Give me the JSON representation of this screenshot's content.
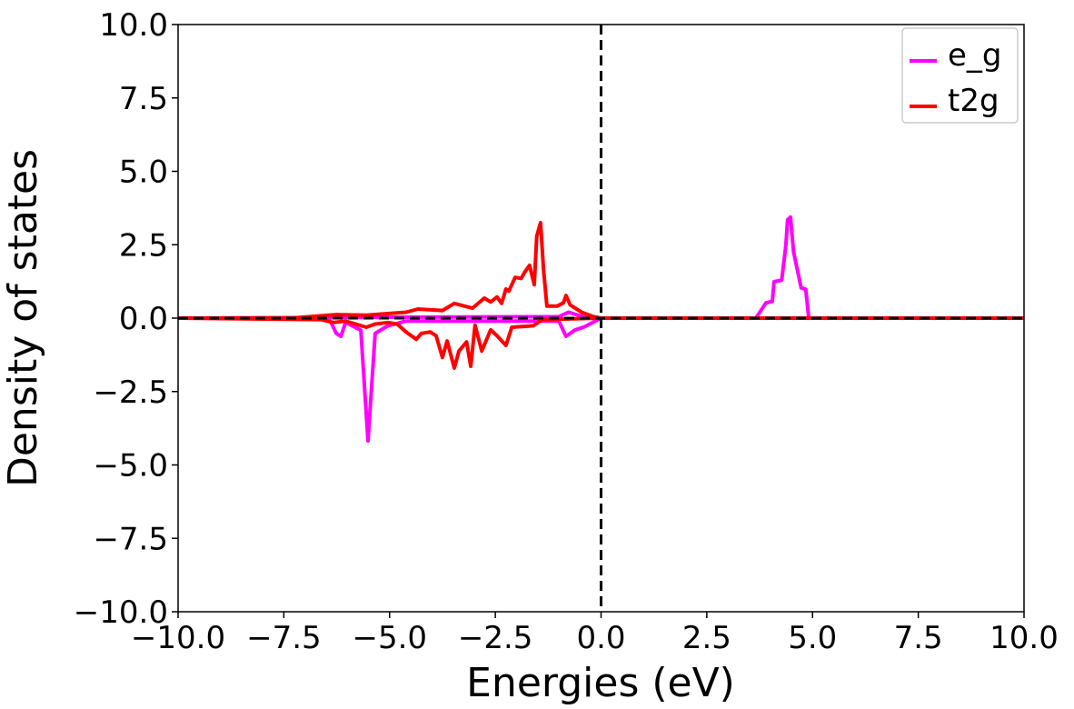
{
  "chart_data": {
    "type": "line",
    "title": "",
    "xlabel": "Energies (eV)",
    "ylabel": "Density of states",
    "xlim": [
      -10,
      10
    ],
    "ylim": [
      -10,
      10
    ],
    "xticks": [
      "−10.0",
      "−7.5",
      "−5.0",
      "−2.5",
      "0.0",
      "2.5",
      "5.0",
      "7.5",
      "10.0"
    ],
    "yticks": [
      "10.0",
      "7.5",
      "5.0",
      "2.5",
      "0.0",
      "−2.5",
      "−5.0",
      "−7.5",
      "−10.0"
    ],
    "xtick_values": [
      -10,
      -7.5,
      -5,
      -2.5,
      0,
      2.5,
      5,
      7.5,
      10
    ],
    "ytick_values": [
      10,
      7.5,
      5,
      2.5,
      0,
      -2.5,
      -5,
      -7.5,
      -10
    ],
    "grid": false,
    "legend_placement": "top-right",
    "reference_lines": {
      "x": 0,
      "y": 0,
      "style": "dashed",
      "color": "#000000"
    },
    "series": [
      {
        "name": "e_g",
        "color": "#ff00ff",
        "part": "spin-up",
        "x": [
          -10,
          -5,
          -1.0,
          -0.77,
          -0.5,
          0,
          3.66,
          3.9,
          4.05,
          4.09,
          4.27,
          4.37,
          4.41,
          4.48,
          4.55,
          4.73,
          4.84,
          4.91,
          5.0,
          10
        ],
        "y": [
          0,
          0.03,
          0.05,
          0.2,
          0.08,
          0,
          0,
          0.52,
          0.57,
          1.24,
          1.29,
          2.48,
          3.35,
          3.44,
          2.27,
          1.03,
          0.98,
          0,
          0,
          0
        ]
      },
      {
        "name": "e_g",
        "color": "#ff00ff",
        "part": "spin-down",
        "x": [
          -10,
          -6.6,
          -6.4,
          -6.26,
          -6.15,
          -6.04,
          -5.68,
          -5.51,
          -5.34,
          -5.04,
          -4.61,
          -1.0,
          -0.83,
          -0.62,
          -0.4,
          0,
          10
        ],
        "y": [
          0,
          0,
          -0.1,
          -0.52,
          -0.62,
          -0.15,
          -0.41,
          -4.18,
          -0.52,
          -0.26,
          -0.1,
          -0.1,
          -0.62,
          -0.41,
          -0.3,
          0,
          0
        ]
      },
      {
        "name": "t2g",
        "color": "#ff0000",
        "part": "spin-up",
        "x": [
          -10,
          -7.34,
          -6.26,
          -5.55,
          -4.61,
          -4.33,
          -3.75,
          -3.47,
          -3.04,
          -2.76,
          -2.61,
          -2.46,
          -2.35,
          -2.25,
          -2.18,
          -2.03,
          -1.89,
          -1.79,
          -1.69,
          -1.58,
          -1.52,
          -1.43,
          -1.36,
          -1.28,
          -1.04,
          -0.89,
          -0.83,
          -0.73,
          -0.46,
          -0.18,
          0,
          10
        ],
        "y": [
          0,
          0,
          0.12,
          0.1,
          0.2,
          0.31,
          0.26,
          0.5,
          0.34,
          0.68,
          0.55,
          0.72,
          0.5,
          0.99,
          0.92,
          1.39,
          1.35,
          1.6,
          1.8,
          1.14,
          2.79,
          3.25,
          1.65,
          0.41,
          0.41,
          0.52,
          0.77,
          0.45,
          0.2,
          0.05,
          0,
          0
        ]
      },
      {
        "name": "t2g",
        "color": "#ff0000",
        "part": "spin-down",
        "x": [
          -10,
          -6.63,
          -6.33,
          -6.04,
          -5.55,
          -5.34,
          -5.04,
          -4.82,
          -4.61,
          -4.37,
          -4.25,
          -4.04,
          -3.9,
          -3.75,
          -3.64,
          -3.47,
          -3.36,
          -3.18,
          -3.08,
          -2.98,
          -2.82,
          -2.61,
          -2.46,
          -2.25,
          -2.11,
          -1.6,
          -1.39,
          0,
          10
        ],
        "y": [
          0,
          -0.05,
          -0.15,
          -0.1,
          -0.31,
          -0.2,
          -0.15,
          -0.2,
          -0.47,
          -0.72,
          -0.52,
          -0.47,
          -0.6,
          -1.34,
          -0.78,
          -1.7,
          -1.12,
          -0.81,
          -1.64,
          -0.24,
          -1.12,
          -0.4,
          -0.6,
          -0.93,
          -0.31,
          -0.26,
          -0.05,
          0,
          0
        ]
      }
    ],
    "legend": [
      {
        "label": "e_g",
        "color": "#ff00ff"
      },
      {
        "label": "t2g",
        "color": "#ff0000"
      }
    ]
  }
}
